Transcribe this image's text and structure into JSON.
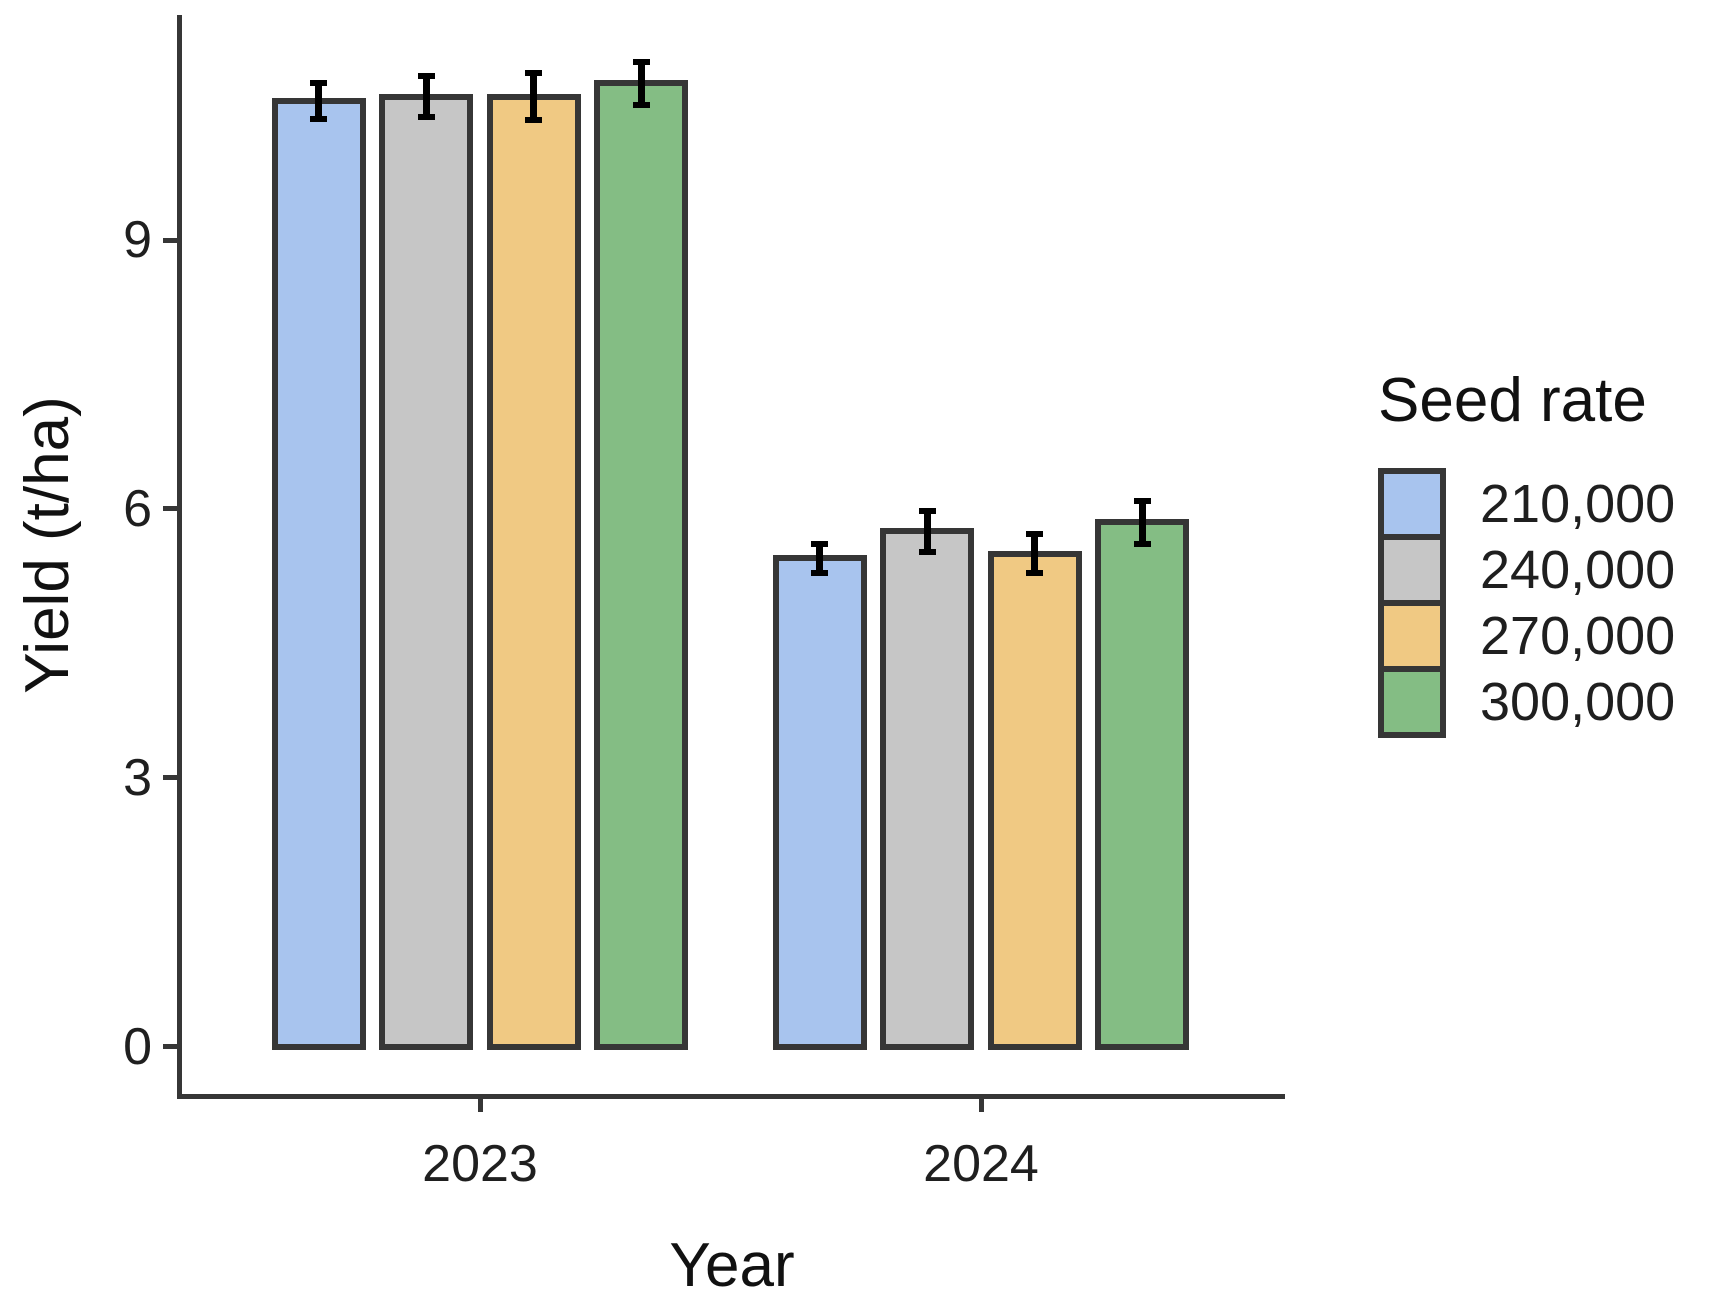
{
  "chart_data": {
    "type": "bar",
    "title": "",
    "xlabel": "Year",
    "ylabel": "Yield (t/ha)",
    "categories": [
      "2023",
      "2024"
    ],
    "series": [
      {
        "name": "210,000",
        "color": "#a8c4ee",
        "values": [
          10.55,
          5.45
        ],
        "errors": [
          0.2,
          0.16
        ]
      },
      {
        "name": "240,000",
        "color": "#c6c6c6",
        "values": [
          10.6,
          5.75
        ],
        "errors": [
          0.23,
          0.23
        ]
      },
      {
        "name": "270,000",
        "color": "#f0c983",
        "values": [
          10.6,
          5.5
        ],
        "errors": [
          0.26,
          0.22
        ]
      },
      {
        "name": "300,000",
        "color": "#84bd84",
        "values": [
          10.75,
          5.85
        ],
        "errors": [
          0.24,
          0.24
        ]
      }
    ],
    "y_ticks": [
      0,
      3,
      6,
      9
    ],
    "ylim": [
      0,
      11.7
    ],
    "grid": false,
    "legend": {
      "title": "Seed rate",
      "position": "right"
    },
    "colors": {
      "bar_border": "#363636",
      "error_bar": "#000000",
      "axis": "#363636",
      "tick_text": "#1f1f1f",
      "title_text": "#111111"
    }
  }
}
